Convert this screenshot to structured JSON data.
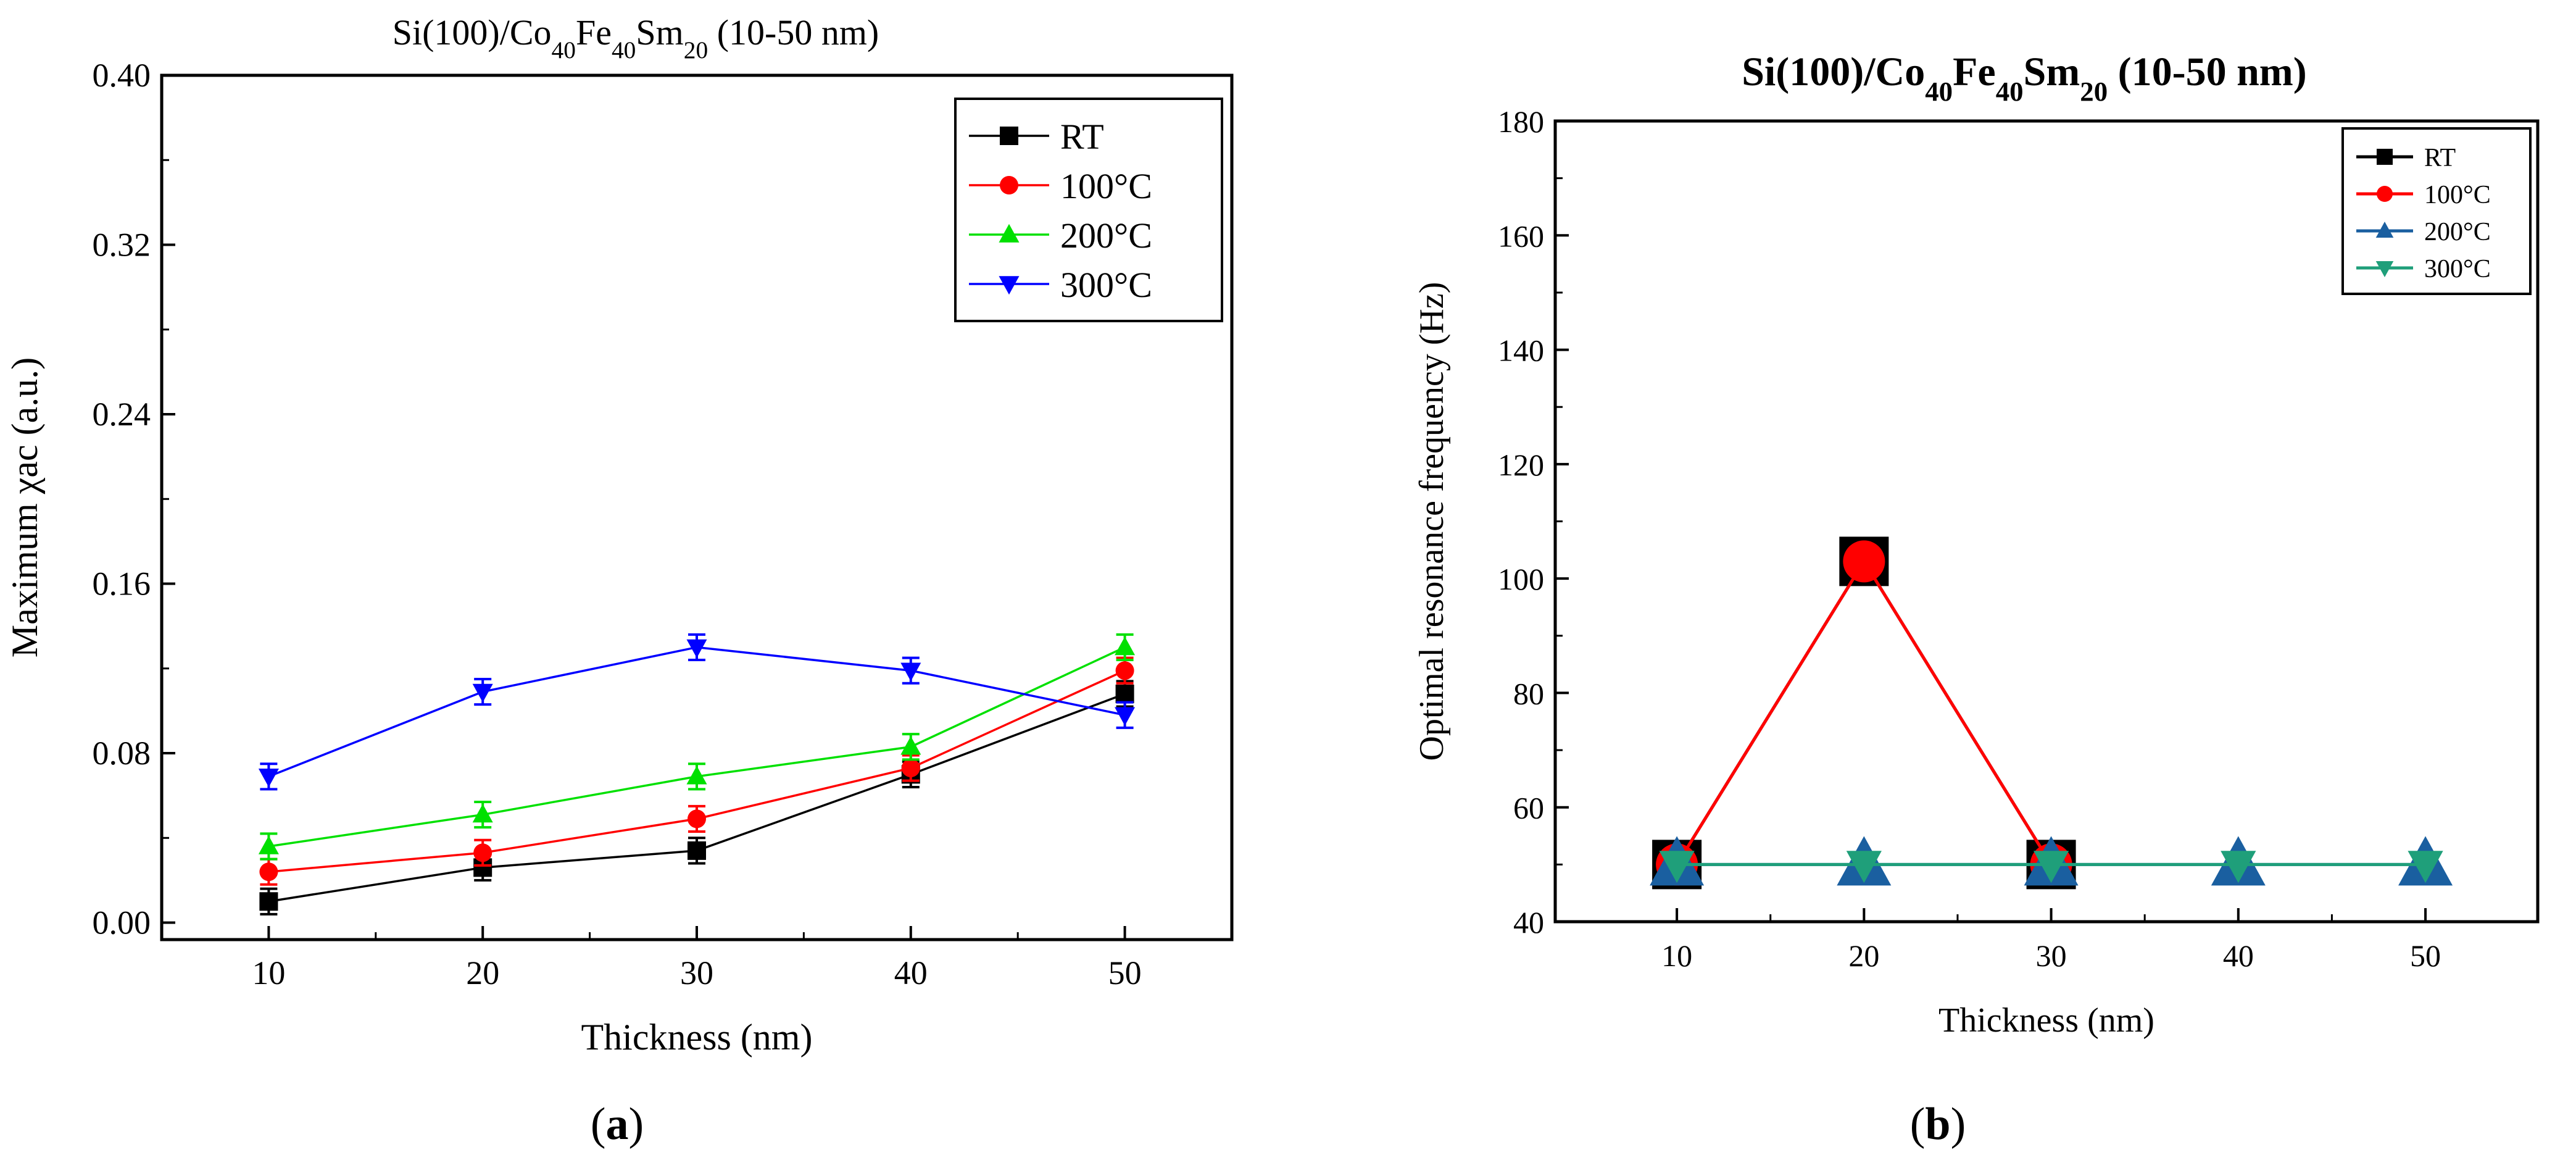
{
  "chart_data": [
    {
      "type": "line",
      "panel": "(a)",
      "panel_letter": "a",
      "title": "Si(100)/Co40Fe40Sm20 (10-50 nm)",
      "title_parts": [
        {
          "t": "Si(100)/Co",
          "sub": false
        },
        {
          "t": "40",
          "sub": true
        },
        {
          "t": "Fe",
          "sub": false
        },
        {
          "t": "40",
          "sub": true
        },
        {
          "t": "Sm",
          "sub": false
        },
        {
          "t": "20",
          "sub": true
        },
        {
          "t": " (10-50 nm)",
          "sub": false
        }
      ],
      "title_bold": false,
      "xlabel": "Thickness (nm)",
      "ylabel": "Maximum χac (a.u.)",
      "x": [
        10,
        20,
        30,
        40,
        50
      ],
      "xticks": [
        "10",
        "20",
        "30",
        "40",
        "50"
      ],
      "xlim": [
        5,
        55
      ],
      "ylim": [
        -0.008,
        0.4
      ],
      "yticks": [
        "0.00",
        "0.08",
        "0.16",
        "0.24",
        "0.32",
        "0.40"
      ],
      "ytick_values": [
        0.0,
        0.08,
        0.16,
        0.24,
        0.32,
        0.4
      ],
      "grid": false,
      "legend_position": "top-right",
      "series": [
        {
          "name": "RT",
          "color": "#000000",
          "marker": "square",
          "values": [
            0.01,
            0.026,
            0.034,
            0.07,
            0.108
          ],
          "errors": [
            0.006,
            0.006,
            0.006,
            0.006,
            0.006
          ]
        },
        {
          "name": "100°C",
          "color": "#ff0000",
          "marker": "circle",
          "values": [
            0.024,
            0.033,
            0.049,
            0.073,
            0.119
          ],
          "errors": [
            0.006,
            0.006,
            0.006,
            0.006,
            0.006
          ]
        },
        {
          "name": "200°C",
          "color": "#00e000",
          "marker": "triangle-up",
          "values": [
            0.036,
            0.051,
            0.069,
            0.083,
            0.13
          ],
          "errors": [
            0.006,
            0.006,
            0.006,
            0.006,
            0.006
          ]
        },
        {
          "name": "300°C",
          "color": "#0000ff",
          "marker": "triangle-down",
          "values": [
            0.069,
            0.109,
            0.13,
            0.119,
            0.098
          ],
          "errors": [
            0.006,
            0.006,
            0.006,
            0.006,
            0.006
          ]
        }
      ]
    },
    {
      "type": "line",
      "panel": "(b)",
      "panel_letter": "b",
      "title": "Si(100)/Co40Fe40Sm20 (10-50 nm)",
      "title_parts": [
        {
          "t": "Si(100)/Co",
          "sub": false
        },
        {
          "t": "40",
          "sub": true
        },
        {
          "t": "Fe",
          "sub": false
        },
        {
          "t": "40",
          "sub": true
        },
        {
          "t": "Sm",
          "sub": false
        },
        {
          "t": "20",
          "sub": true
        },
        {
          "t": " (10-50 nm)",
          "sub": false
        }
      ],
      "title_bold": true,
      "xlabel": "Thickness (nm)",
      "ylabel": "Optimal resonance frequency (Hz)",
      "x": [
        10,
        20,
        30,
        40,
        50
      ],
      "xticks": [
        "10",
        "20",
        "30",
        "40",
        "50"
      ],
      "xlim": [
        3.5,
        56
      ],
      "ylim": [
        40,
        180
      ],
      "yticks": [
        "40",
        "60",
        "80",
        "100",
        "120",
        "140",
        "160",
        "180"
      ],
      "ytick_values": [
        40,
        60,
        80,
        100,
        120,
        140,
        160,
        180
      ],
      "grid": false,
      "legend_position": "top-right",
      "series": [
        {
          "name": "RT",
          "color": "#000000",
          "marker": "square",
          "values": [
            50,
            103,
            50,
            null,
            null
          ]
        },
        {
          "name": "100°C",
          "color": "#ff0000",
          "marker": "circle",
          "values": [
            50,
            103,
            50,
            null,
            null
          ]
        },
        {
          "name": "200°C",
          "color": "#1a5fa0",
          "marker": "triangle-up",
          "values": [
            50,
            50,
            50,
            50,
            50
          ]
        },
        {
          "name": "300°C",
          "color": "#1f9f7a",
          "marker": "triangle-down",
          "values": [
            50,
            50,
            50,
            50,
            50
          ]
        }
      ]
    }
  ]
}
